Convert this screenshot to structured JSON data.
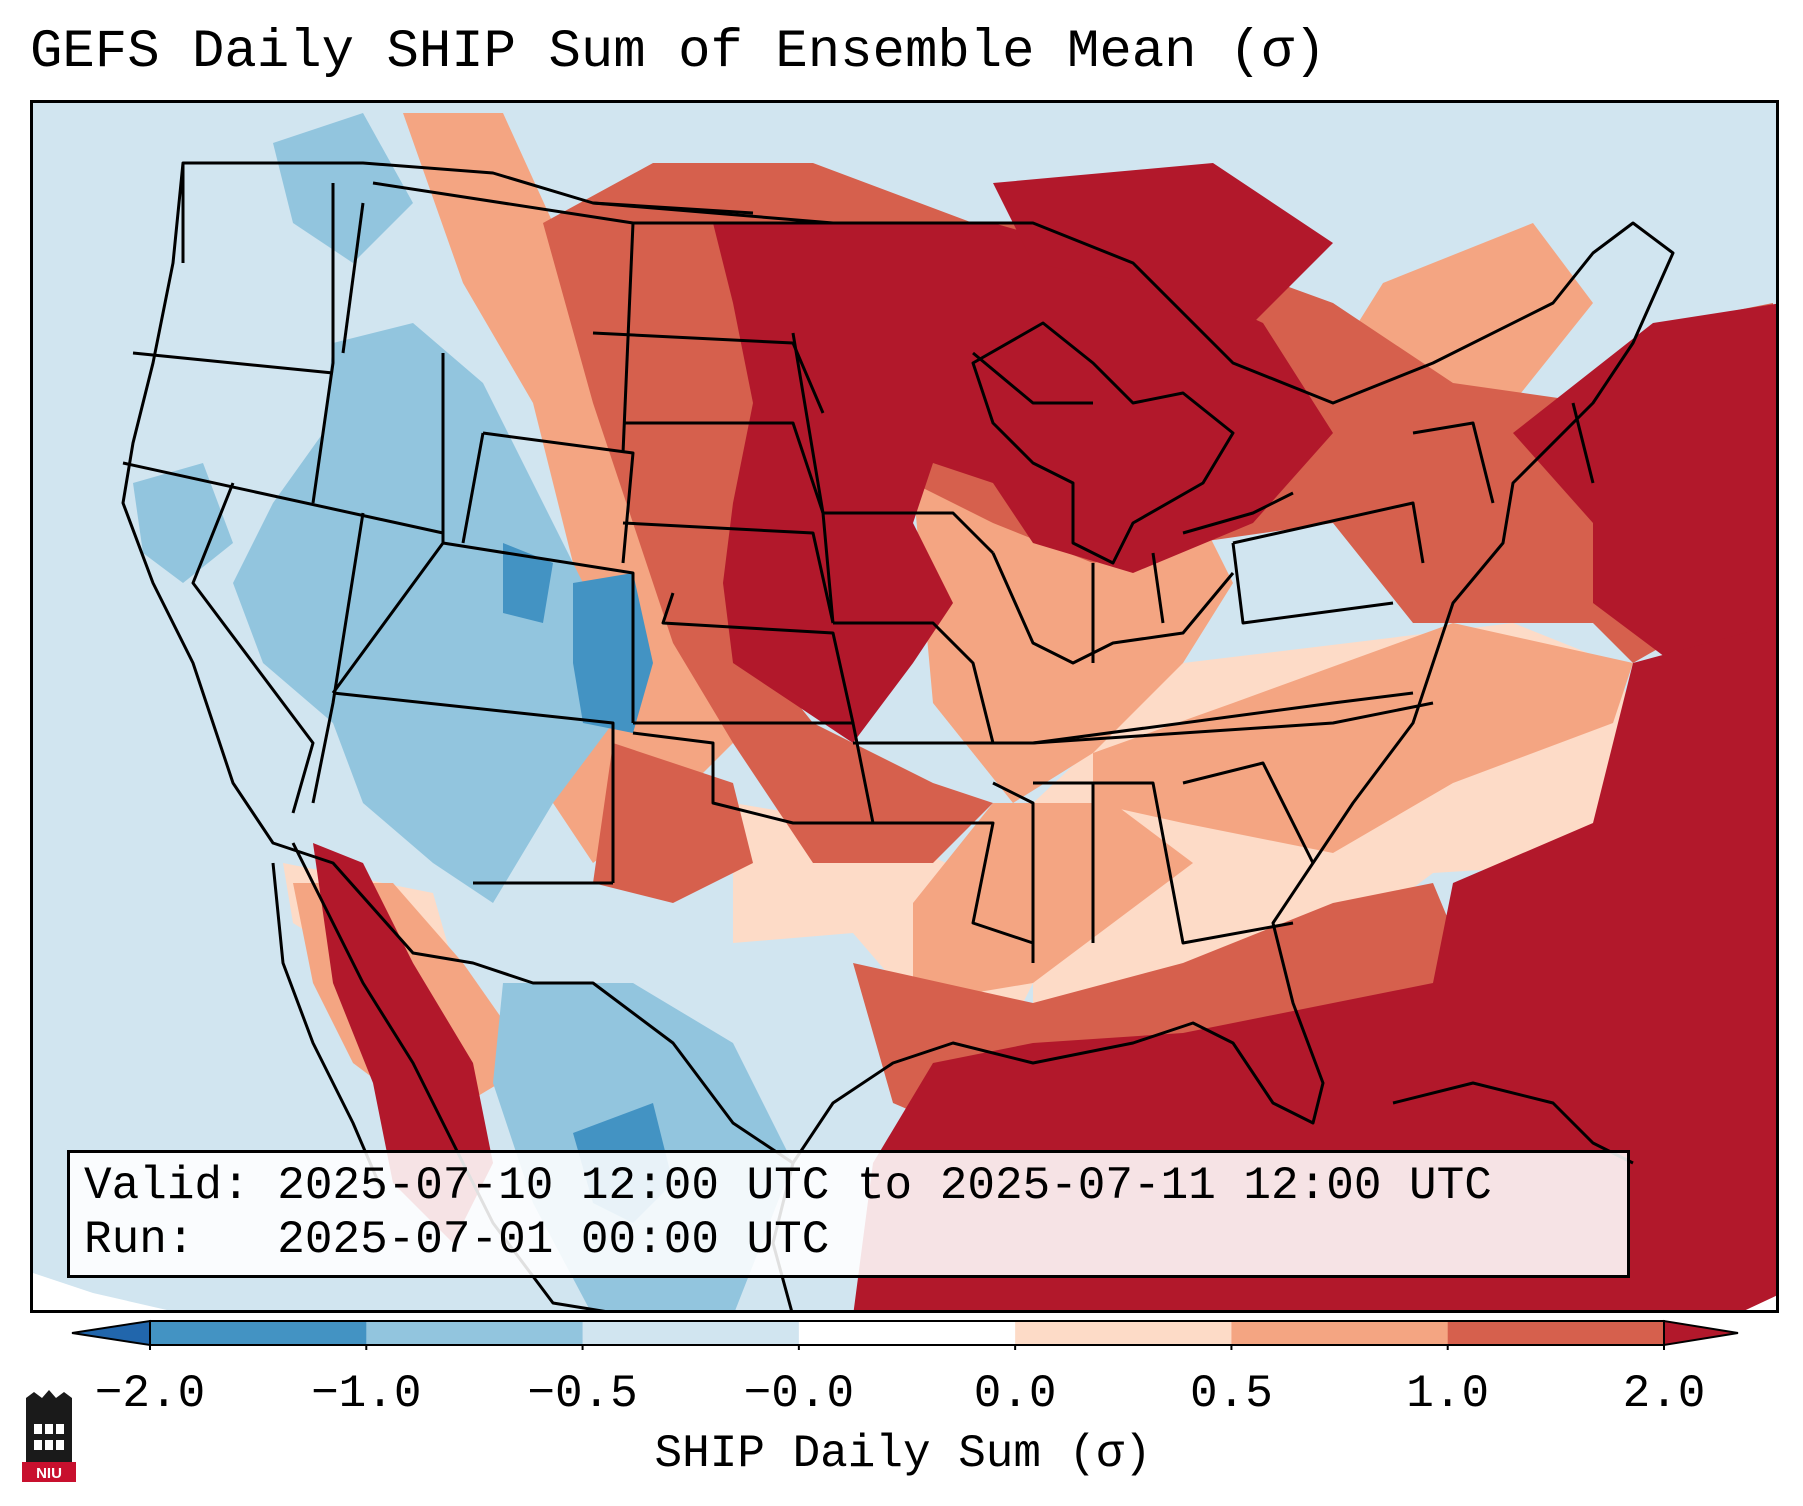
{
  "title": "GEFS Daily SHIP Sum of Ensemble Mean (σ)",
  "info": {
    "valid_label": "Valid:",
    "valid_value": "2025-07-10 12:00 UTC to 2025-07-11 12:00 UTC",
    "run_label": "Run:",
    "run_value": "2025-07-01 00:00 UTC"
  },
  "colorbar": {
    "label": "SHIP Daily Sum (σ)",
    "ticks": [
      "−2.0",
      "−1.0",
      "−0.5",
      "−0.0",
      "0.0",
      "0.5",
      "1.0",
      "2.0"
    ],
    "colors": {
      "below_min": "#2166ac",
      "bins": [
        "#4393c3",
        "#92c5de",
        "#d1e5f0",
        "#ffffff",
        "#fddbc7",
        "#f4a582",
        "#d6604d"
      ],
      "above_max": "#b2182b"
    }
  },
  "map": {
    "region": "Contiguous United States",
    "colors": {
      "ocean_background": "#d1e5f0",
      "strong_neg": "#4393c3",
      "mod_neg": "#92c5de",
      "weak_neg": "#d1e5f0",
      "weak_pos": "#fddbc7",
      "mod_pos": "#f4a582",
      "strong_pos": "#d6604d",
      "extreme_pos": "#b2182b",
      "border": "#000000"
    }
  },
  "logo": {
    "text": "NIU",
    "icon": "university-logo-icon"
  }
}
